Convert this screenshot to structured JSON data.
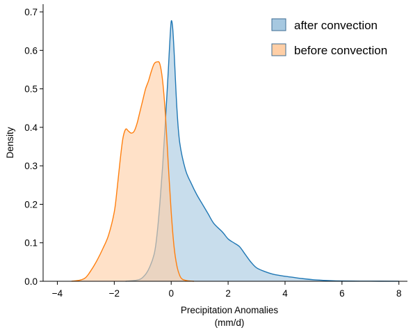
{
  "chart_data": {
    "type": "area",
    "title": "",
    "xlabel_lines": [
      "Precipitation Anomalies",
      "(mm/d)"
    ],
    "ylabel": "Density",
    "xlim": [
      -4.5,
      8.3
    ],
    "ylim": [
      0,
      0.72
    ],
    "xticks": [
      -4,
      -2,
      0,
      2,
      4,
      6,
      8
    ],
    "xtick_labels": [
      "−4",
      "−2",
      "0",
      "2",
      "4",
      "6",
      "8"
    ],
    "yticks": [
      0.0,
      0.1,
      0.2,
      0.3,
      0.4,
      0.5,
      0.6,
      0.7
    ],
    "ytick_labels": [
      "0.0",
      "0.1",
      "0.2",
      "0.3",
      "0.4",
      "0.5",
      "0.6",
      "0.7"
    ],
    "grid": false,
    "legend_position": "top-right",
    "series": [
      {
        "name": "after convection",
        "color": "#1f77b4",
        "fill": "#a6c8e0",
        "points": [
          [
            -1.6,
            0.0
          ],
          [
            -1.2,
            0.003
          ],
          [
            -1.0,
            0.01
          ],
          [
            -0.8,
            0.03
          ],
          [
            -0.6,
            0.07
          ],
          [
            -0.5,
            0.12
          ],
          [
            -0.4,
            0.2
          ],
          [
            -0.3,
            0.3
          ],
          [
            -0.2,
            0.42
          ],
          [
            -0.1,
            0.55
          ],
          [
            -0.05,
            0.62
          ],
          [
            0.0,
            0.675
          ],
          [
            0.05,
            0.66
          ],
          [
            0.1,
            0.6
          ],
          [
            0.2,
            0.45
          ],
          [
            0.3,
            0.36
          ],
          [
            0.5,
            0.29
          ],
          [
            0.7,
            0.255
          ],
          [
            0.9,
            0.225
          ],
          [
            1.1,
            0.2
          ],
          [
            1.3,
            0.175
          ],
          [
            1.5,
            0.15
          ],
          [
            1.8,
            0.128
          ],
          [
            2.0,
            0.11
          ],
          [
            2.2,
            0.1
          ],
          [
            2.4,
            0.09
          ],
          [
            2.6,
            0.07
          ],
          [
            2.8,
            0.05
          ],
          [
            3.0,
            0.035
          ],
          [
            3.3,
            0.025
          ],
          [
            3.6,
            0.018
          ],
          [
            4.0,
            0.013
          ],
          [
            4.3,
            0.01
          ],
          [
            4.6,
            0.007
          ],
          [
            5.0,
            0.004
          ],
          [
            5.5,
            0.002
          ],
          [
            6.0,
            0.0008
          ],
          [
            7.0,
            0.0003
          ],
          [
            8.0,
            0.0001
          ]
        ]
      },
      {
        "name": "before convection",
        "color": "#ff7f0e",
        "fill": "#ffcfa6",
        "points": [
          [
            -3.5,
            0.0
          ],
          [
            -3.2,
            0.003
          ],
          [
            -3.0,
            0.01
          ],
          [
            -2.8,
            0.03
          ],
          [
            -2.6,
            0.055
          ],
          [
            -2.4,
            0.085
          ],
          [
            -2.2,
            0.12
          ],
          [
            -2.0,
            0.18
          ],
          [
            -1.9,
            0.24
          ],
          [
            -1.8,
            0.31
          ],
          [
            -1.7,
            0.37
          ],
          [
            -1.6,
            0.395
          ],
          [
            -1.5,
            0.39
          ],
          [
            -1.4,
            0.385
          ],
          [
            -1.3,
            0.39
          ],
          [
            -1.2,
            0.41
          ],
          [
            -1.1,
            0.44
          ],
          [
            -1.0,
            0.47
          ],
          [
            -0.9,
            0.5
          ],
          [
            -0.8,
            0.52
          ],
          [
            -0.7,
            0.545
          ],
          [
            -0.6,
            0.565
          ],
          [
            -0.5,
            0.57
          ],
          [
            -0.4,
            0.565
          ],
          [
            -0.3,
            0.52
          ],
          [
            -0.2,
            0.43
          ],
          [
            -0.1,
            0.3
          ],
          [
            0.0,
            0.18
          ],
          [
            0.1,
            0.09
          ],
          [
            0.2,
            0.04
          ],
          [
            0.3,
            0.015
          ],
          [
            0.4,
            0.005
          ],
          [
            0.6,
            0.001
          ],
          [
            0.8,
            0.0
          ]
        ]
      }
    ]
  }
}
